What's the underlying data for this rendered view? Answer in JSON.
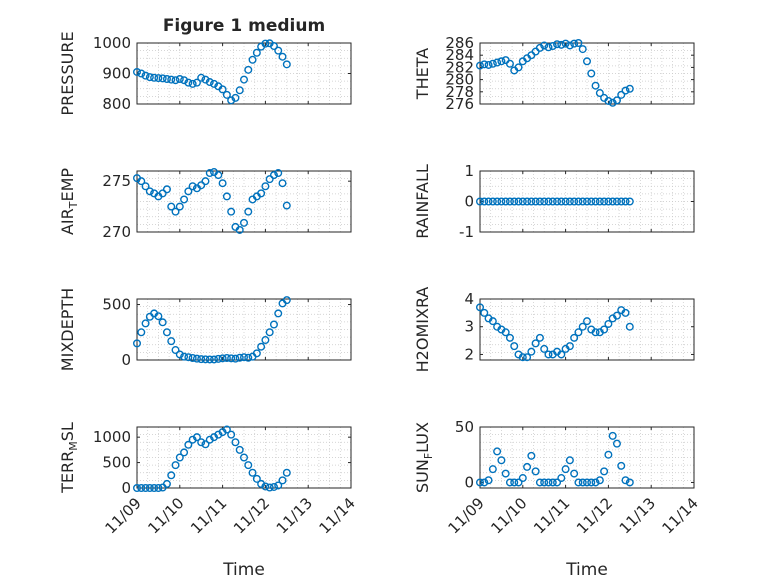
{
  "chart_data": [
    {
      "type": "scatter",
      "title": "Figure 1 medium",
      "ylabel": "PRESSURE",
      "xlabel": "",
      "ylim": [
        800,
        1000
      ],
      "yticks": [
        800,
        900,
        1000
      ],
      "ytick_labels": [
        "800",
        "900",
        "1000"
      ],
      "xticks": [
        0,
        1,
        2,
        3,
        4,
        5
      ],
      "xtick_labels": [],
      "grid": true,
      "marker_color": "#0072BD",
      "points": [
        [
          0,
          905
        ],
        [
          0.1,
          900
        ],
        [
          0.2,
          893
        ],
        [
          0.3,
          888
        ],
        [
          0.4,
          886
        ],
        [
          0.5,
          885
        ],
        [
          0.6,
          884
        ],
        [
          0.7,
          882
        ],
        [
          0.8,
          880
        ],
        [
          0.9,
          878
        ],
        [
          1.0,
          882
        ],
        [
          1.1,
          878
        ],
        [
          1.2,
          870
        ],
        [
          1.3,
          866
        ],
        [
          1.4,
          870
        ],
        [
          1.5,
          886
        ],
        [
          1.6,
          880
        ],
        [
          1.7,
          872
        ],
        [
          1.8,
          866
        ],
        [
          1.9,
          858
        ],
        [
          2.0,
          848
        ],
        [
          2.1,
          830
        ],
        [
          2.2,
          812
        ],
        [
          2.3,
          820
        ],
        [
          2.4,
          845
        ],
        [
          2.5,
          880
        ],
        [
          2.6,
          912
        ],
        [
          2.7,
          945
        ],
        [
          2.8,
          968
        ],
        [
          2.9,
          988
        ],
        [
          3.0,
          998
        ],
        [
          3.1,
          999
        ],
        [
          3.2,
          990
        ],
        [
          3.3,
          975
        ],
        [
          3.4,
          955
        ],
        [
          3.5,
          930
        ]
      ]
    },
    {
      "type": "scatter",
      "title": "",
      "ylabel": "THETA",
      "xlabel": "",
      "ylim": [
        276,
        286
      ],
      "yticks": [
        276,
        278,
        280,
        282,
        284,
        286
      ],
      "ytick_labels": [
        "276",
        "278",
        "280",
        "282",
        "284",
        "286"
      ],
      "xticks": [
        0,
        1,
        2,
        3,
        4,
        5
      ],
      "xtick_labels": [],
      "grid": true,
      "marker_color": "#0072BD",
      "points": [
        [
          0,
          282.3
        ],
        [
          0.1,
          282.5
        ],
        [
          0.2,
          282.4
        ],
        [
          0.3,
          282.6
        ],
        [
          0.4,
          282.8
        ],
        [
          0.5,
          283.0
        ],
        [
          0.6,
          283.2
        ],
        [
          0.7,
          282.6
        ],
        [
          0.8,
          281.5
        ],
        [
          0.9,
          282.0
        ],
        [
          1.0,
          283.0
        ],
        [
          1.1,
          283.5
        ],
        [
          1.2,
          284.0
        ],
        [
          1.3,
          284.6
        ],
        [
          1.4,
          285.2
        ],
        [
          1.5,
          285.6
        ],
        [
          1.6,
          285.3
        ],
        [
          1.7,
          285.5
        ],
        [
          1.8,
          285.8
        ],
        [
          1.9,
          285.7
        ],
        [
          2.0,
          285.9
        ],
        [
          2.1,
          285.6
        ],
        [
          2.2,
          285.9
        ],
        [
          2.3,
          286.0
        ],
        [
          2.4,
          285.0
        ],
        [
          2.5,
          283.0
        ],
        [
          2.6,
          281.0
        ],
        [
          2.7,
          279.0
        ],
        [
          2.8,
          277.8
        ],
        [
          2.9,
          277.0
        ],
        [
          3.0,
          276.5
        ],
        [
          3.1,
          276.2
        ],
        [
          3.2,
          276.6
        ],
        [
          3.3,
          277.5
        ],
        [
          3.4,
          278.2
        ],
        [
          3.5,
          278.5
        ]
      ]
    },
    {
      "type": "scatter",
      "title": "",
      "ylabel": "AIR_TEMP",
      "xlabel": "",
      "ylim": [
        270,
        276
      ],
      "yticks": [
        270,
        275
      ],
      "ytick_labels": [
        "270",
        "275"
      ],
      "xticks": [
        0,
        1,
        2,
        3,
        4,
        5
      ],
      "xtick_labels": [],
      "grid": true,
      "marker_color": "#0072BD",
      "points": [
        [
          0,
          275.3
        ],
        [
          0.1,
          275.0
        ],
        [
          0.2,
          274.5
        ],
        [
          0.3,
          274.0
        ],
        [
          0.4,
          273.8
        ],
        [
          0.5,
          273.5
        ],
        [
          0.6,
          273.8
        ],
        [
          0.7,
          274.2
        ],
        [
          0.8,
          272.5
        ],
        [
          0.9,
          272.0
        ],
        [
          1.0,
          272.5
        ],
        [
          1.1,
          273.2
        ],
        [
          1.2,
          274.0
        ],
        [
          1.3,
          274.5
        ],
        [
          1.4,
          274.3
        ],
        [
          1.5,
          274.6
        ],
        [
          1.6,
          275.0
        ],
        [
          1.7,
          275.8
        ],
        [
          1.8,
          275.9
        ],
        [
          1.9,
          275.6
        ],
        [
          2.0,
          274.8
        ],
        [
          2.1,
          273.5
        ],
        [
          2.2,
          272.0
        ],
        [
          2.3,
          270.5
        ],
        [
          2.4,
          270.2
        ],
        [
          2.5,
          270.9
        ],
        [
          2.6,
          272.0
        ],
        [
          2.7,
          273.2
        ],
        [
          2.8,
          273.5
        ],
        [
          2.9,
          273.8
        ],
        [
          3.0,
          274.5
        ],
        [
          3.1,
          275.2
        ],
        [
          3.2,
          275.6
        ],
        [
          3.3,
          275.8
        ],
        [
          3.4,
          274.8
        ],
        [
          3.5,
          272.6
        ]
      ]
    },
    {
      "type": "scatter",
      "title": "",
      "ylabel": "RAINFALL",
      "xlabel": "",
      "ylim": [
        -1,
        1
      ],
      "yticks": [
        -1,
        0,
        1
      ],
      "ytick_labels": [
        "-1",
        "0",
        "1"
      ],
      "xticks": [
        0,
        1,
        2,
        3,
        4,
        5
      ],
      "xtick_labels": [],
      "grid": true,
      "marker_color": "#0072BD",
      "points": [
        [
          0,
          0
        ],
        [
          0.1,
          0
        ],
        [
          0.2,
          0
        ],
        [
          0.3,
          0
        ],
        [
          0.4,
          0
        ],
        [
          0.5,
          0
        ],
        [
          0.6,
          0
        ],
        [
          0.7,
          0
        ],
        [
          0.8,
          0
        ],
        [
          0.9,
          0
        ],
        [
          1.0,
          0
        ],
        [
          1.1,
          0
        ],
        [
          1.2,
          0
        ],
        [
          1.3,
          0
        ],
        [
          1.4,
          0
        ],
        [
          1.5,
          0
        ],
        [
          1.6,
          0
        ],
        [
          1.7,
          0
        ],
        [
          1.8,
          0
        ],
        [
          1.9,
          0
        ],
        [
          2.0,
          0
        ],
        [
          2.1,
          0
        ],
        [
          2.2,
          0
        ],
        [
          2.3,
          0
        ],
        [
          2.4,
          0
        ],
        [
          2.5,
          0
        ],
        [
          2.6,
          0
        ],
        [
          2.7,
          0
        ],
        [
          2.8,
          0
        ],
        [
          2.9,
          0
        ],
        [
          3.0,
          0
        ],
        [
          3.1,
          0
        ],
        [
          3.2,
          0
        ],
        [
          3.3,
          0
        ],
        [
          3.4,
          0
        ],
        [
          3.5,
          0
        ]
      ]
    },
    {
      "type": "scatter",
      "title": "",
      "ylabel": "MIXDEPTH",
      "xlabel": "",
      "ylim": [
        0,
        550
      ],
      "yticks": [
        0,
        500
      ],
      "ytick_labels": [
        "0",
        "500"
      ],
      "xticks": [
        0,
        1,
        2,
        3,
        4,
        5
      ],
      "xtick_labels": [],
      "grid": true,
      "marker_color": "#0072BD",
      "points": [
        [
          0,
          150
        ],
        [
          0.1,
          250
        ],
        [
          0.2,
          330
        ],
        [
          0.3,
          390
        ],
        [
          0.4,
          420
        ],
        [
          0.5,
          395
        ],
        [
          0.6,
          340
        ],
        [
          0.7,
          250
        ],
        [
          0.8,
          170
        ],
        [
          0.9,
          90
        ],
        [
          1.0,
          50
        ],
        [
          1.1,
          30
        ],
        [
          1.2,
          25
        ],
        [
          1.3,
          18
        ],
        [
          1.4,
          12
        ],
        [
          1.5,
          8
        ],
        [
          1.6,
          6
        ],
        [
          1.7,
          5
        ],
        [
          1.8,
          5
        ],
        [
          1.9,
          10
        ],
        [
          2.0,
          15
        ],
        [
          2.1,
          18
        ],
        [
          2.2,
          15
        ],
        [
          2.3,
          12
        ],
        [
          2.4,
          20
        ],
        [
          2.5,
          25
        ],
        [
          2.6,
          20
        ],
        [
          2.7,
          30
        ],
        [
          2.8,
          60
        ],
        [
          2.9,
          120
        ],
        [
          3.0,
          180
        ],
        [
          3.1,
          250
        ],
        [
          3.2,
          320
        ],
        [
          3.3,
          420
        ],
        [
          3.4,
          510
        ],
        [
          3.5,
          540
        ]
      ]
    },
    {
      "type": "scatter",
      "title": "",
      "ylabel": "H2OMIXRA",
      "xlabel": "",
      "ylim": [
        1.8,
        4
      ],
      "yticks": [
        2,
        3,
        4
      ],
      "ytick_labels": [
        "2",
        "3",
        "4"
      ],
      "xticks": [
        0,
        1,
        2,
        3,
        4,
        5
      ],
      "xtick_labels": [],
      "grid": true,
      "marker_color": "#0072BD",
      "points": [
        [
          0,
          3.7
        ],
        [
          0.1,
          3.5
        ],
        [
          0.2,
          3.3
        ],
        [
          0.3,
          3.2
        ],
        [
          0.4,
          3.0
        ],
        [
          0.5,
          2.9
        ],
        [
          0.6,
          2.8
        ],
        [
          0.7,
          2.6
        ],
        [
          0.8,
          2.3
        ],
        [
          0.9,
          2.0
        ],
        [
          1.0,
          1.9
        ],
        [
          1.1,
          1.9
        ],
        [
          1.2,
          2.1
        ],
        [
          1.3,
          2.4
        ],
        [
          1.4,
          2.6
        ],
        [
          1.5,
          2.2
        ],
        [
          1.6,
          2.0
        ],
        [
          1.7,
          2.0
        ],
        [
          1.8,
          2.1
        ],
        [
          1.9,
          2.0
        ],
        [
          2.0,
          2.2
        ],
        [
          2.1,
          2.3
        ],
        [
          2.2,
          2.6
        ],
        [
          2.3,
          2.8
        ],
        [
          2.4,
          3.0
        ],
        [
          2.5,
          3.2
        ],
        [
          2.6,
          2.9
        ],
        [
          2.7,
          2.8
        ],
        [
          2.8,
          2.8
        ],
        [
          2.9,
          2.9
        ],
        [
          3.0,
          3.1
        ],
        [
          3.1,
          3.3
        ],
        [
          3.2,
          3.4
        ],
        [
          3.3,
          3.6
        ],
        [
          3.4,
          3.5
        ],
        [
          3.5,
          3.0
        ]
      ]
    },
    {
      "type": "scatter",
      "title": "",
      "ylabel": "TERR_MSL",
      "xlabel": "Time",
      "ylim": [
        0,
        1200
      ],
      "yticks": [
        0,
        500,
        1000
      ],
      "ytick_labels": [
        "0",
        "500",
        "1000"
      ],
      "xticks": [
        0,
        1,
        2,
        3,
        4,
        5
      ],
      "xtick_labels": [
        "11/09",
        "11/10",
        "11/11",
        "11/12",
        "11/13",
        "11/14"
      ],
      "grid": true,
      "marker_color": "#0072BD",
      "points": [
        [
          0,
          0
        ],
        [
          0.1,
          0
        ],
        [
          0.2,
          0
        ],
        [
          0.3,
          0
        ],
        [
          0.4,
          0
        ],
        [
          0.5,
          0
        ],
        [
          0.6,
          10
        ],
        [
          0.7,
          80
        ],
        [
          0.8,
          250
        ],
        [
          0.9,
          450
        ],
        [
          1.0,
          600
        ],
        [
          1.1,
          700
        ],
        [
          1.2,
          850
        ],
        [
          1.3,
          950
        ],
        [
          1.4,
          1000
        ],
        [
          1.5,
          900
        ],
        [
          1.6,
          860
        ],
        [
          1.7,
          950
        ],
        [
          1.8,
          1000
        ],
        [
          1.9,
          1050
        ],
        [
          2.0,
          1100
        ],
        [
          2.1,
          1150
        ],
        [
          2.2,
          1050
        ],
        [
          2.3,
          900
        ],
        [
          2.4,
          750
        ],
        [
          2.5,
          600
        ],
        [
          2.6,
          450
        ],
        [
          2.7,
          300
        ],
        [
          2.8,
          180
        ],
        [
          2.9,
          80
        ],
        [
          3.0,
          30
        ],
        [
          3.1,
          10
        ],
        [
          3.2,
          20
        ],
        [
          3.3,
          50
        ],
        [
          3.4,
          150
        ],
        [
          3.5,
          300
        ]
      ]
    },
    {
      "type": "scatter",
      "title": "",
      "ylabel": "SUN_FLUX",
      "xlabel": "Time",
      "ylim": [
        -5,
        50
      ],
      "yticks": [
        0,
        50
      ],
      "ytick_labels": [
        "0",
        "50"
      ],
      "xticks": [
        0,
        1,
        2,
        3,
        4,
        5
      ],
      "xtick_labels": [
        "11/09",
        "11/10",
        "11/11",
        "11/12",
        "11/13",
        "11/14"
      ],
      "grid": true,
      "marker_color": "#0072BD",
      "points": [
        [
          0,
          0
        ],
        [
          0.1,
          0
        ],
        [
          0.2,
          2
        ],
        [
          0.3,
          12
        ],
        [
          0.4,
          28
        ],
        [
          0.5,
          20
        ],
        [
          0.6,
          8
        ],
        [
          0.7,
          0
        ],
        [
          0.8,
          0
        ],
        [
          0.9,
          0
        ],
        [
          1.0,
          4
        ],
        [
          1.1,
          14
        ],
        [
          1.2,
          24
        ],
        [
          1.3,
          10
        ],
        [
          1.4,
          0
        ],
        [
          1.5,
          0
        ],
        [
          1.6,
          0
        ],
        [
          1.7,
          0
        ],
        [
          1.8,
          0
        ],
        [
          1.9,
          4
        ],
        [
          2.0,
          12
        ],
        [
          2.1,
          20
        ],
        [
          2.2,
          8
        ],
        [
          2.3,
          0
        ],
        [
          2.4,
          0
        ],
        [
          2.5,
          0
        ],
        [
          2.6,
          0
        ],
        [
          2.7,
          0
        ],
        [
          2.8,
          2
        ],
        [
          2.9,
          10
        ],
        [
          3.0,
          25
        ],
        [
          3.1,
          42
        ],
        [
          3.2,
          35
        ],
        [
          3.3,
          15
        ],
        [
          3.4,
          2
        ],
        [
          3.5,
          0
        ]
      ]
    }
  ]
}
